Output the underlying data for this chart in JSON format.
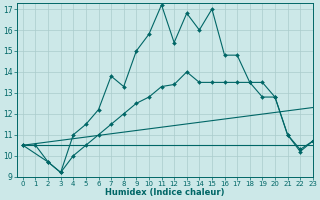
{
  "bg_color": "#cce8e8",
  "grid_color": "#aacccc",
  "line_color": "#006666",
  "xlabel": "Humidex (Indice chaleur)",
  "xlim": [
    -0.5,
    23
  ],
  "ylim": [
    9,
    17.3
  ],
  "yticks": [
    9,
    10,
    11,
    12,
    13,
    14,
    15,
    16,
    17
  ],
  "xticks": [
    0,
    1,
    2,
    3,
    4,
    5,
    6,
    7,
    8,
    9,
    10,
    11,
    12,
    13,
    14,
    15,
    16,
    17,
    18,
    19,
    20,
    21,
    22,
    23
  ],
  "line1_x": [
    0,
    1,
    2,
    3,
    4,
    5,
    6,
    7,
    8,
    9,
    10,
    11,
    12,
    13,
    14,
    15,
    16,
    17,
    18,
    19,
    20,
    21,
    22,
    23
  ],
  "line1_y": [
    10.5,
    10.5,
    9.7,
    9.2,
    11.0,
    11.5,
    12.2,
    13.8,
    13.3,
    15.0,
    15.8,
    17.2,
    15.4,
    16.8,
    16.0,
    17.0,
    14.8,
    14.8,
    13.5,
    12.8,
    12.8,
    11.0,
    10.2,
    10.7
  ],
  "line2_x": [
    0,
    2,
    3,
    4,
    5,
    6,
    7,
    8,
    9,
    10,
    11,
    12,
    13,
    14,
    15,
    16,
    17,
    18,
    19,
    20,
    21,
    22,
    23
  ],
  "line2_y": [
    10.5,
    9.7,
    9.2,
    10.0,
    10.5,
    11.0,
    11.5,
    12.0,
    12.5,
    12.8,
    13.3,
    13.4,
    14.0,
    13.5,
    13.5,
    13.5,
    13.5,
    13.5,
    13.5,
    12.8,
    11.0,
    10.3,
    10.7
  ],
  "line3_x": [
    0,
    23
  ],
  "line3_y": [
    10.5,
    12.3
  ],
  "line4_x": [
    0,
    23
  ],
  "line4_y": [
    10.5,
    10.5
  ]
}
